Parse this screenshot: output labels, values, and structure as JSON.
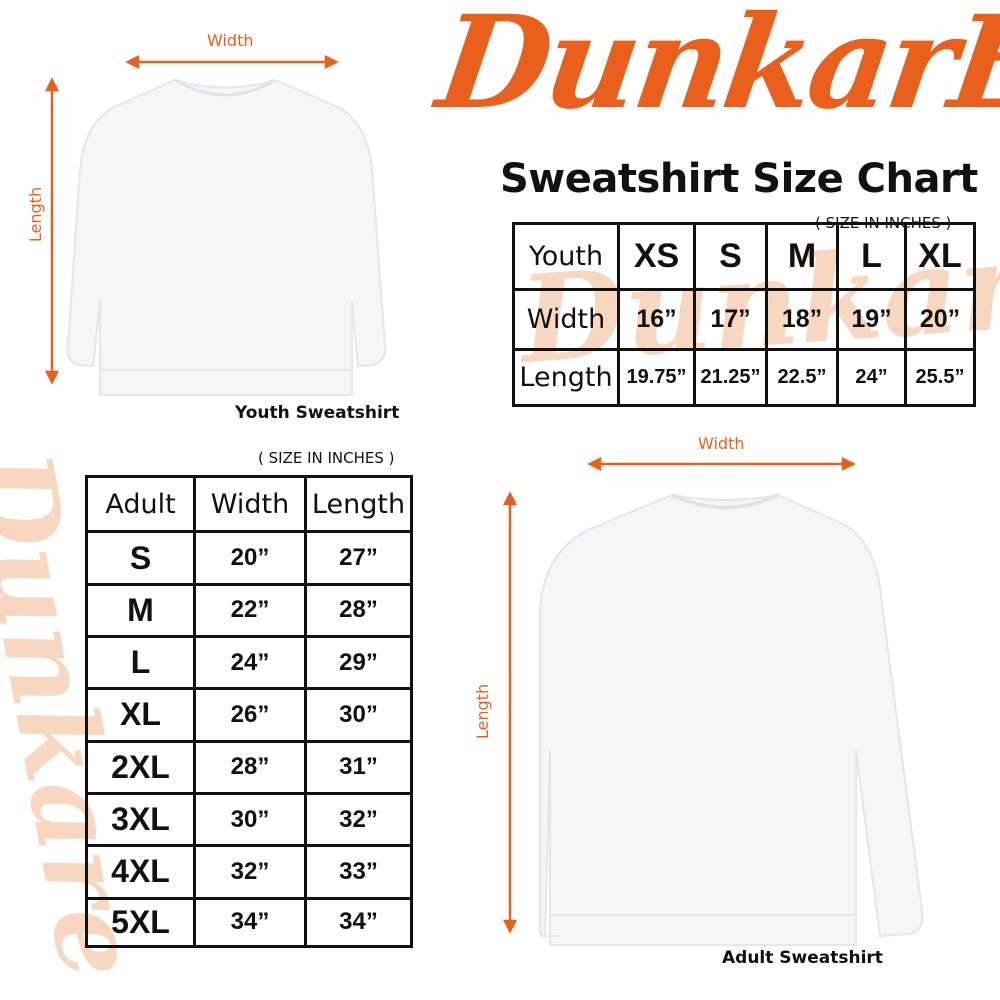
{
  "brand": {
    "logo_text": "DunkarE",
    "color": "#e8601c"
  },
  "title": "Sweatshirt Size Chart",
  "youth": {
    "image_caption": "Youth Sweatshirt",
    "width_label": "Width",
    "length_label": "Length",
    "unit_note": "( SIZE IN INCHES )",
    "table": {
      "header": [
        "Youth",
        "XS",
        "S",
        "M",
        "L",
        "XL"
      ],
      "rows": [
        [
          "Width",
          "16”",
          "17”",
          "18”",
          "19”",
          "20”"
        ],
        [
          "Length",
          "19.75”",
          "21.25”",
          "22.5”",
          "24”",
          "25.5”"
        ]
      ]
    }
  },
  "adult": {
    "image_caption": "Adult Sweatshirt",
    "width_label": "Width",
    "length_label": "Length",
    "unit_note": "( SIZE IN INCHES )",
    "table": {
      "header": [
        "Adult",
        "Width",
        "Length"
      ],
      "rows": [
        [
          "S",
          "20”",
          "27”"
        ],
        [
          "M",
          "22”",
          "28”"
        ],
        [
          "L",
          "24”",
          "29”"
        ],
        [
          "XL",
          "26”",
          "30”"
        ],
        [
          "2XL",
          "28”",
          "31”"
        ],
        [
          "3XL",
          "30”",
          "32”"
        ],
        [
          "4XL",
          "32”",
          "33”"
        ],
        [
          "5XL",
          "34”",
          "34”"
        ]
      ]
    }
  }
}
